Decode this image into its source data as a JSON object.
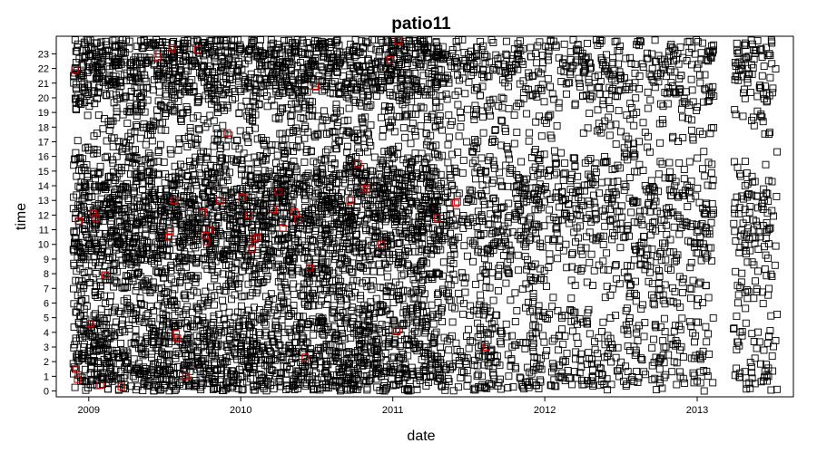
{
  "chart_data": {
    "type": "scatter",
    "title": "patio11",
    "xlabel": "date",
    "ylabel": "time",
    "x_ticks": [
      "2009",
      "2010",
      "2011",
      "2012",
      "2013"
    ],
    "x_tick_values": [
      "2009-01-01",
      "2010-01-01",
      "2011-01-01",
      "2012-01-01",
      "2013-01-01"
    ],
    "xlim": [
      "2008-10-15",
      "2013-08-20"
    ],
    "y_ticks": [
      "0",
      "1",
      "2",
      "3",
      "4",
      "5",
      "6",
      "7",
      "8",
      "9",
      "10",
      "11",
      "12",
      "13",
      "14",
      "15",
      "16",
      "17",
      "18",
      "19",
      "20",
      "21",
      "22",
      "23"
    ],
    "ylim": [
      -0.4,
      24.2
    ],
    "grid": false,
    "marker": "open-square",
    "colors": {
      "main": "#000000",
      "highlight": "#cc0000"
    },
    "series": [
      {
        "values": [
          [
            "2008-11-29",
            21.9
          ],
          [
            "2008-12-08",
            11.6
          ],
          [
            "2008-12-02",
            1.5
          ],
          [
            "2008-12-05",
            0.8
          ],
          [
            "2009-01-12",
            12.1
          ],
          [
            "2009-01-18",
            11.8
          ],
          [
            "2009-01-29",
            0.4
          ],
          [
            "2009-02-10",
            7.9
          ],
          [
            "2009-01-04",
            4.6
          ],
          [
            "2009-03-20",
            0.3
          ],
          [
            "2009-06-15",
            22.8
          ],
          [
            "2009-07-20",
            23.4
          ],
          [
            "2009-07-25",
            13.0
          ],
          [
            "2009-07-12",
            10.5
          ],
          [
            "2009-07-16",
            10.9
          ],
          [
            "2009-07-30",
            3.9
          ],
          [
            "2009-08-02",
            3.6
          ],
          [
            "2009-08-22",
            1.0
          ],
          [
            "2009-09-20",
            23.3
          ],
          [
            "2009-10-01",
            12.2
          ],
          [
            "2009-10-06",
            10.6
          ],
          [
            "2009-10-10",
            10.2
          ],
          [
            "2009-10-18",
            11.0
          ],
          [
            "2009-11-12",
            13.0
          ],
          [
            "2009-11-30",
            17.6
          ],
          [
            "2010-01-04",
            13.2
          ],
          [
            "2010-01-20",
            12.0
          ],
          [
            "2010-02-03",
            10.4
          ],
          [
            "2010-01-28",
            9.7
          ],
          [
            "2010-02-10",
            10.5
          ],
          [
            "2010-04-01",
            13.6
          ],
          [
            "2010-03-20",
            12.4
          ],
          [
            "2010-04-12",
            11.1
          ],
          [
            "2010-05-10",
            12.2
          ],
          [
            "2010-05-18",
            11.7
          ],
          [
            "2010-06-28",
            20.8
          ],
          [
            "2010-06-15",
            8.4
          ],
          [
            "2010-06-05",
            2.3
          ],
          [
            "2010-09-20",
            13.0
          ],
          [
            "2010-10-10",
            15.5
          ],
          [
            "2010-10-24",
            13.8
          ],
          [
            "2010-10-30",
            13.8
          ],
          [
            "2010-12-05",
            10.0
          ],
          [
            "2010-12-26",
            22.6
          ],
          [
            "2011-01-14",
            23.9
          ],
          [
            "2011-01-10",
            4.1
          ],
          [
            "2011-04-18",
            11.8
          ],
          [
            "2011-06-01",
            12.8
          ],
          [
            "2011-06-05",
            12.9
          ],
          [
            "2011-08-14",
            3.0
          ]
        ]
      }
    ]
  }
}
